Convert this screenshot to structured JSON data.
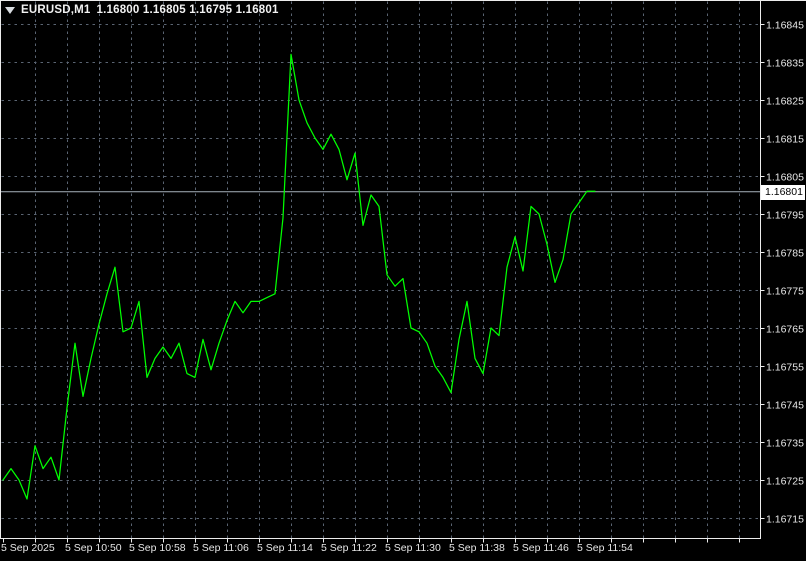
{
  "window": {
    "background": "#000000"
  },
  "chart": {
    "title": {
      "symbol": "EURUSD,M1",
      "ohlc": "1.16800 1.16805 1.16795 1.16801"
    },
    "bid_label": "1.16801",
    "colors": {
      "background": "#000000",
      "grid": "#5a6472",
      "series": "#00ff00",
      "frame": "#ececec",
      "bid_line": "#a8b2bc",
      "axis_text": "#e6e6e6",
      "bid_tag_bg": "#ffffff",
      "bid_tag_text": "#000000"
    }
  },
  "chart_data": {
    "type": "line",
    "title": "EURUSD,M1",
    "symbol": "EURUSD",
    "timeframe": "M1",
    "date": "5 Sep 2025",
    "xlabel": "",
    "ylabel": "",
    "grid": true,
    "legend": "none",
    "bid_price": 1.16801,
    "current_bar_ohlc": {
      "open": 1.168,
      "high": 1.16805,
      "low": 1.16795,
      "close": 1.16801
    },
    "y_axis_labels": [
      "1.16845",
      "1.16835",
      "1.16825",
      "1.16815",
      "1.16805",
      "1.16795",
      "1.16785",
      "1.16775",
      "1.16765",
      "1.16755",
      "1.16745",
      "1.16735",
      "1.16725",
      "1.16715"
    ],
    "ylim": [
      1.1671,
      1.16851
    ],
    "x_axis_labels": [
      "5 Sep 2025",
      "5 Sep 10:50",
      "5 Sep 10:58",
      "5 Sep 11:06",
      "5 Sep 11:14",
      "5 Sep 11:22",
      "5 Sep 11:30",
      "5 Sep 11:38",
      "5 Sep 11:46",
      "5 Sep 11:54"
    ],
    "x": [
      "10:42",
      "10:43",
      "10:44",
      "10:45",
      "10:46",
      "10:47",
      "10:48",
      "10:49",
      "10:50",
      "10:51",
      "10:52",
      "10:53",
      "10:54",
      "10:55",
      "10:56",
      "10:57",
      "10:58",
      "10:59",
      "11:00",
      "11:01",
      "11:02",
      "11:03",
      "11:04",
      "11:05",
      "11:06",
      "11:07",
      "11:08",
      "11:09",
      "11:10",
      "11:11",
      "11:12",
      "11:13",
      "11:14",
      "11:15",
      "11:16",
      "11:17",
      "11:18",
      "11:19",
      "11:20",
      "11:21",
      "11:22",
      "11:23",
      "11:24",
      "11:25",
      "11:26",
      "11:27",
      "11:28",
      "11:29",
      "11:30",
      "11:31",
      "11:32",
      "11:33",
      "11:34",
      "11:35",
      "11:36",
      "11:37",
      "11:38",
      "11:39",
      "11:40",
      "11:41",
      "11:42",
      "11:43",
      "11:44",
      "11:45",
      "11:46",
      "11:47",
      "11:48",
      "11:49",
      "11:50",
      "11:51",
      "11:52",
      "11:53",
      "11:54",
      "11:55",
      "11:56"
    ],
    "values": [
      1.16725,
      1.16728,
      1.16725,
      1.1672,
      1.16734,
      1.16728,
      1.16731,
      1.16725,
      1.16744,
      1.16761,
      1.16747,
      1.16757,
      1.16766,
      1.16774,
      1.16781,
      1.16764,
      1.16765,
      1.16772,
      1.16752,
      1.16757,
      1.1676,
      1.16757,
      1.16761,
      1.16753,
      1.16752,
      1.16762,
      1.16754,
      1.16761,
      1.16767,
      1.16772,
      1.16769,
      1.16772,
      1.16772,
      1.16773,
      1.16774,
      1.16794,
      1.16837,
      1.16825,
      1.16819,
      1.16815,
      1.16812,
      1.16816,
      1.16812,
      1.16804,
      1.16811,
      1.16792,
      1.168,
      1.16797,
      1.16779,
      1.16776,
      1.16778,
      1.16765,
      1.16764,
      1.16761,
      1.16755,
      1.16752,
      1.16748,
      1.16762,
      1.16772,
      1.16757,
      1.16753,
      1.16765,
      1.16763,
      1.16781,
      1.16789,
      1.1678,
      1.16797,
      1.16795,
      1.16787,
      1.16777,
      1.16783,
      1.16795,
      1.16798,
      1.16801,
      1.16801
    ]
  }
}
